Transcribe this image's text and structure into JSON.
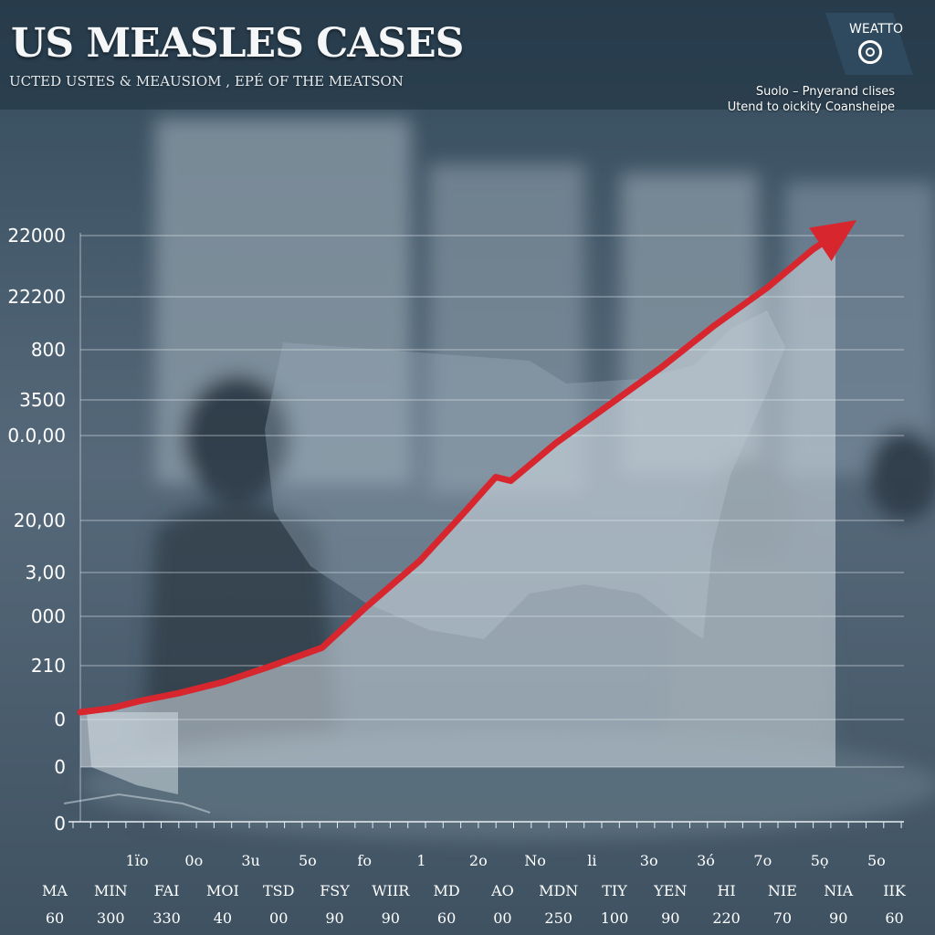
{
  "header": {
    "title": "US MEASLES CASES",
    "subtitle": "UCTED USTES & MEAUSIOM , EPÉ OF THE MEATSON"
  },
  "logo": {
    "text": "WEATTO",
    "icon": "target-ring-icon"
  },
  "notes": {
    "line1": "Suolo – Pnyerand clises",
    "line2": "Utend to oickity Coansheipe"
  },
  "colors": {
    "trend": "#d8262e",
    "background": "#4a5d6c",
    "grid": "#e8eef2"
  },
  "chart_data": {
    "type": "line",
    "title": "US MEASLES CASES",
    "ytick_labels": [
      "22000",
      "22200",
      "800",
      "3500",
      "0.0,00",
      "20,00",
      "3,00",
      "000",
      "210",
      "0",
      "0",
      "0"
    ],
    "xtick_labels": [
      "1ïo",
      "0o",
      "3u",
      "5o",
      "fo",
      "1",
      "2o",
      "No",
      "li",
      "3o",
      "3ó",
      "7o",
      "5ọ",
      "5o"
    ],
    "row1_labels": [
      "MA",
      "MIN",
      "FAI",
      "MOI",
      "TSD",
      "FSY",
      "WIIR",
      "MD",
      "AO",
      "MDN",
      "TIY",
      "YEN",
      "HI",
      "NIE",
      "NIA",
      "IIK"
    ],
    "row2_labels": [
      "60",
      "300",
      "330",
      "40",
      "00",
      "90",
      "90",
      "60",
      "00",
      "250",
      "100",
      "90",
      "220",
      "70",
      "90",
      "60"
    ],
    "series": [
      {
        "x": [
          0,
          0.04,
          0.08,
          0.13,
          0.19,
          0.25,
          0.32,
          0.38,
          0.45,
          0.51,
          0.55,
          0.57,
          0.63,
          0.7,
          0.77,
          0.84,
          0.91,
          0.97,
          1.0
        ],
        "values": [
          0,
          0.01,
          0.03,
          0.05,
          0.08,
          0.12,
          0.17,
          0.28,
          0.4,
          0.53,
          0.62,
          0.61,
          0.71,
          0.81,
          0.91,
          1.02,
          1.12,
          1.22,
          1.26
        ]
      }
    ],
    "ylim": [
      0,
      1.3
    ],
    "grid": true,
    "trend_arrow": true
  }
}
